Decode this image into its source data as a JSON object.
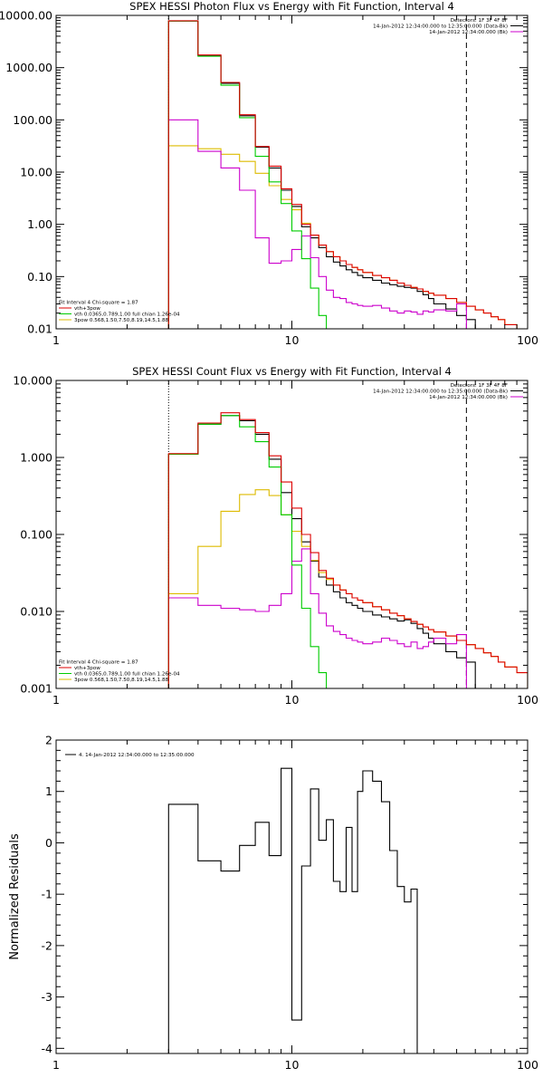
{
  "chart_data": [
    {
      "type": "line",
      "title": "SPEX HESSI Photon Flux vs Energy with Fit Function, Interval 4",
      "xlabel": "",
      "ylabel": "",
      "x_scale": "log",
      "y_scale": "log",
      "xlim": [
        1,
        100
      ],
      "ylim": [
        0.01,
        10000
      ],
      "x_ticks": [
        1,
        10,
        100
      ],
      "x_tick_labels": [
        "1",
        "10",
        "100"
      ],
      "y_ticks": [
        0.01,
        0.1,
        1,
        10,
        100,
        1000,
        10000
      ],
      "y_tick_labels": [
        "0.01",
        "0.10",
        "1.00",
        "10.00",
        "100.00",
        "1000.00",
        "10000.00"
      ],
      "legend_top_right": [
        {
          "text": "Detectors: 1F 3F 4F 8F",
          "color": ""
        },
        {
          "text": "14-Jan-2012 12:34:00.000 to 12:35:00.000 (Data-Bk)",
          "color": "#000000"
        },
        {
          "text": "14-Jan-2012 12:34:00.000 (Bk)",
          "color": "#cc00cc"
        }
      ],
      "legend_bottom_left": [
        {
          "text": "Fit Interval  4    Chi-square = 1.87",
          "color": ""
        },
        {
          "text": "vth+3pow",
          "color": "#dd0000"
        },
        {
          "text": "vth 0.0365,0.789,1.00  full chian 1.26e-04",
          "color": "#00cc00"
        },
        {
          "text": "3pow  0.568,1.50,7.50,8.19,14.5,1.88",
          "color": "#ddbb00"
        }
      ],
      "vlines": [
        {
          "x": 3,
          "style": "dotted",
          "color": "#000000"
        },
        {
          "x": 55,
          "style": "dashed",
          "color": "#000000"
        }
      ],
      "edges": [
        3,
        4,
        5,
        6,
        7,
        8,
        9,
        10,
        11,
        12,
        13,
        14,
        15,
        16,
        17,
        18,
        19,
        20,
        22,
        24,
        26,
        28,
        30,
        32,
        34,
        36,
        38,
        40,
        45,
        50,
        55,
        60,
        65,
        70,
        75,
        80,
        90,
        100
      ],
      "series": [
        {
          "name": "Data-Bk",
          "color": "#000000",
          "values": [
            7800,
            1700,
            500,
            120,
            30,
            12,
            4.5,
            2.2,
            0.9,
            0.55,
            0.36,
            0.24,
            0.19,
            0.16,
            0.135,
            0.12,
            0.105,
            0.095,
            0.085,
            0.075,
            0.07,
            0.065,
            0.062,
            0.06,
            0.052,
            0.045,
            0.038,
            0.03,
            0.024,
            0.018,
            0.015,
            null,
            null,
            null,
            null,
            null,
            null
          ]
        },
        {
          "name": "vth+3pow",
          "color": "#dd0000",
          "values": [
            7900,
            1750,
            520,
            125,
            31,
            13,
            4.8,
            2.4,
            1.0,
            0.62,
            0.4,
            0.3,
            0.24,
            0.2,
            0.17,
            0.15,
            0.135,
            0.12,
            0.105,
            0.095,
            0.085,
            0.075,
            0.068,
            0.062,
            0.058,
            0.052,
            0.048,
            0.044,
            0.038,
            0.032,
            0.027,
            0.023,
            0.02,
            0.017,
            0.015,
            0.012,
            0.0095
          ]
        },
        {
          "name": "vth",
          "color": "#00cc00",
          "values": [
            7800,
            1650,
            460,
            110,
            20,
            6.5,
            2.5,
            0.75,
            0.22,
            0.06,
            0.018,
            0.005,
            null,
            null,
            null,
            null,
            null,
            null,
            null,
            null,
            null,
            null,
            null,
            null,
            null,
            null,
            null,
            null,
            null,
            null,
            null,
            null,
            null,
            null,
            null,
            null,
            null
          ]
        },
        {
          "name": "3pow",
          "color": "#ddbb00",
          "values": [
            32,
            28,
            22,
            16,
            9.5,
            5.5,
            3.0,
            1.9,
            1.05,
            0.62,
            0.4,
            0.3,
            0.24,
            0.2,
            0.17,
            0.15,
            0.135,
            0.12,
            0.105,
            0.095,
            0.085,
            0.075,
            0.068,
            0.062,
            0.058,
            0.052,
            0.048,
            0.044,
            0.038,
            0.032,
            0.027,
            0.023,
            0.02,
            0.017,
            0.015,
            0.012,
            0.0095
          ]
        },
        {
          "name": "Bk",
          "color": "#cc00cc",
          "values": [
            100,
            25,
            12,
            4.5,
            0.55,
            0.18,
            0.2,
            0.33,
            0.6,
            0.23,
            0.1,
            0.055,
            0.04,
            0.038,
            0.032,
            0.03,
            0.028,
            0.027,
            0.028,
            0.025,
            0.022,
            0.02,
            0.022,
            0.021,
            0.019,
            0.022,
            0.021,
            0.023,
            0.022,
            0.03,
            null,
            null,
            null,
            null,
            null,
            null,
            null
          ]
        }
      ]
    },
    {
      "type": "line",
      "title": "SPEX HESSI Count Flux vs Energy with Fit Function, Interval 4",
      "xlabel": "",
      "ylabel": "",
      "x_scale": "log",
      "y_scale": "log",
      "xlim": [
        1,
        100
      ],
      "ylim": [
        0.001,
        10
      ],
      "x_ticks": [
        1,
        10,
        100
      ],
      "x_tick_labels": [
        "1",
        "10",
        "100"
      ],
      "y_ticks": [
        0.001,
        0.01,
        0.1,
        1,
        10
      ],
      "y_tick_labels": [
        "0.001",
        "0.010",
        "0.100",
        "1.000",
        "10.000"
      ],
      "legend_top_right": [
        {
          "text": "Detectors: 1F 3F 4F 8F",
          "color": ""
        },
        {
          "text": "14-Jan-2012 12:34:00.000 to 12:35:00.000 (Data-Bk)",
          "color": "#000000"
        },
        {
          "text": "14-Jan-2012 12:34:00.000 (Bk)",
          "color": "#cc00cc"
        }
      ],
      "legend_bottom_left": [
        {
          "text": "Fit Interval  4    Chi-square = 1.87",
          "color": ""
        },
        {
          "text": "vth+3pow",
          "color": "#dd0000"
        },
        {
          "text": "vth 0.0365,0.789,1.00  full chian 1.26e-04",
          "color": "#00cc00"
        },
        {
          "text": "3pow  0.568,1.50,7.50,8.19,14.5,1.88",
          "color": "#ddbb00"
        }
      ],
      "vlines": [
        {
          "x": 3,
          "style": "dotted",
          "color": "#000000"
        },
        {
          "x": 55,
          "style": "dashed",
          "color": "#000000"
        }
      ],
      "edges": [
        3,
        4,
        5,
        6,
        7,
        8,
        9,
        10,
        11,
        12,
        13,
        14,
        15,
        16,
        17,
        18,
        19,
        20,
        22,
        24,
        26,
        28,
        30,
        32,
        34,
        36,
        38,
        40,
        45,
        50,
        55,
        60,
        65,
        70,
        75,
        80,
        90,
        100
      ],
      "series": [
        {
          "name": "Data-Bk",
          "color": "#000000",
          "values": [
            1.1,
            2.7,
            3.5,
            3.0,
            2.0,
            0.95,
            0.35,
            0.16,
            0.08,
            0.045,
            0.028,
            0.022,
            0.018,
            0.015,
            0.013,
            0.012,
            0.011,
            0.01,
            0.009,
            0.0085,
            0.008,
            0.0075,
            0.0078,
            0.007,
            0.006,
            0.0052,
            0.0045,
            0.0038,
            0.003,
            0.0025,
            0.0022,
            null,
            null,
            null,
            null,
            null,
            null
          ]
        },
        {
          "name": "vth+3pow",
          "color": "#dd0000",
          "values": [
            1.12,
            2.8,
            3.8,
            3.1,
            2.1,
            1.05,
            0.48,
            0.22,
            0.1,
            0.058,
            0.034,
            0.027,
            0.022,
            0.019,
            0.017,
            0.015,
            0.014,
            0.013,
            0.0115,
            0.0105,
            0.0095,
            0.0088,
            0.008,
            0.0074,
            0.0068,
            0.0063,
            0.0058,
            0.0054,
            0.0048,
            0.0042,
            0.0037,
            0.0033,
            0.0029,
            0.0026,
            0.0022,
            0.0019,
            0.0016
          ]
        },
        {
          "name": "vth",
          "color": "#00cc00",
          "values": [
            1.1,
            2.7,
            3.5,
            2.5,
            1.6,
            0.75,
            0.18,
            0.04,
            0.011,
            0.0035,
            0.0016,
            0.0008,
            null,
            null,
            null,
            null,
            null,
            null,
            null,
            null,
            null,
            null,
            null,
            null,
            null,
            null,
            null,
            null,
            null,
            null,
            null,
            null,
            null,
            null,
            null,
            null,
            null
          ]
        },
        {
          "name": "3pow",
          "color": "#ddbb00",
          "values": [
            0.017,
            0.07,
            0.2,
            0.33,
            0.38,
            0.32,
            0.18,
            0.11,
            0.07,
            0.046,
            0.032,
            0.026,
            0.022,
            0.019,
            0.017,
            0.015,
            0.014,
            0.013,
            0.0115,
            0.0105,
            0.0095,
            0.0088,
            0.008,
            0.0074,
            0.0068,
            0.0063,
            0.0058,
            0.0054,
            0.0048,
            0.0042,
            0.0037,
            0.0033,
            0.0029,
            0.0026,
            0.0022,
            0.0019,
            0.0016
          ]
        },
        {
          "name": "Bk",
          "color": "#cc00cc",
          "values": [
            0.015,
            0.012,
            0.011,
            0.0105,
            0.01,
            0.012,
            0.017,
            0.045,
            0.065,
            0.017,
            0.0095,
            0.0065,
            0.0055,
            0.005,
            0.0045,
            0.0042,
            0.004,
            0.0038,
            0.004,
            0.0045,
            0.0042,
            0.0038,
            0.0035,
            0.004,
            0.0033,
            0.0035,
            0.004,
            0.0045,
            0.0038,
            0.005,
            null,
            null,
            null,
            null,
            null,
            null,
            null
          ]
        }
      ]
    },
    {
      "type": "line",
      "title": "",
      "xlabel": "",
      "ylabel": "Normalized Residuals",
      "x_scale": "log",
      "y_scale": "linear",
      "xlim": [
        1,
        100
      ],
      "ylim": [
        -4.1,
        2
      ],
      "x_ticks": [
        1,
        10,
        100
      ],
      "x_tick_labels": [
        "1",
        "10",
        "100"
      ],
      "y_ticks": [
        2,
        1,
        0,
        -1,
        -2,
        -3,
        -4
      ],
      "y_tick_labels": [
        "2",
        "1",
        "0",
        "-1",
        "-2",
        "-3",
        "-4"
      ],
      "legend_top_left": [
        {
          "text": "4. 14-Jan-2012 12:34:00.000 to 12:35:00.000",
          "color": "#000000"
        }
      ],
      "edges": [
        3,
        4,
        5,
        6,
        7,
        8,
        9,
        10,
        11,
        12,
        13,
        14,
        15,
        16,
        17,
        18,
        19,
        20,
        22,
        24,
        26,
        28,
        30,
        32,
        34,
        36,
        38,
        40,
        45,
        50,
        55
      ],
      "series": [
        {
          "name": "4. 14-Jan-2012 12:34:00.000 to 12:35:00.000",
          "color": "#000000",
          "values": [
            0.75,
            -0.35,
            -0.55,
            -0.05,
            0.4,
            -0.25,
            1.45,
            -3.45,
            -0.45,
            1.05,
            0.05,
            0.45,
            -0.75,
            -0.95,
            0.3,
            -0.95,
            1.0,
            1.4,
            1.2,
            0.8,
            -0.15,
            -0.85,
            -1.15,
            -0.9,
            null,
            null,
            null,
            null,
            null,
            null
          ]
        }
      ]
    }
  ]
}
